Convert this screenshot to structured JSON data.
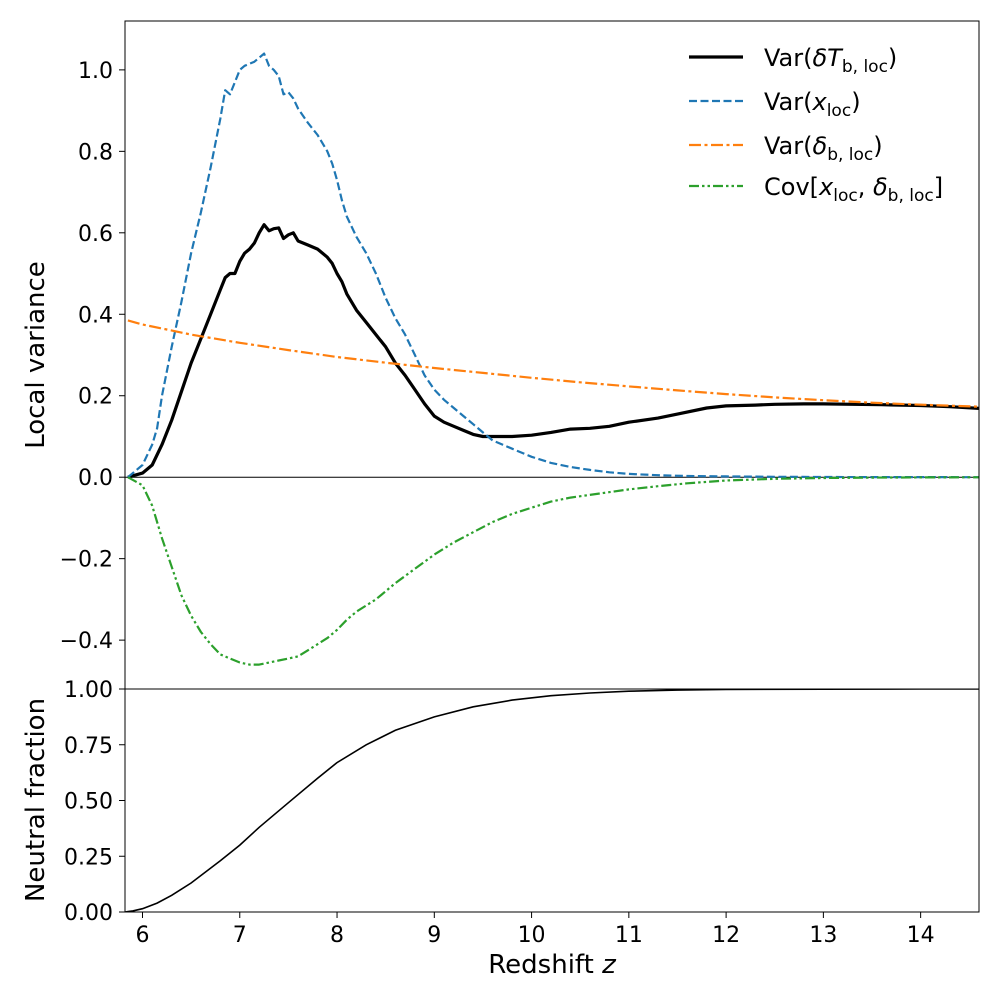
{
  "chart_data": [
    {
      "type": "line",
      "panel": "top",
      "xlabel": "",
      "ylabel": "Local variance",
      "xlim": [
        5.82,
        14.6
      ],
      "ylim": [
        -0.52,
        1.12
      ],
      "yticks": [
        -0.4,
        -0.2,
        0.0,
        0.2,
        0.4,
        0.6,
        0.8,
        1.0
      ],
      "ytick_labels": [
        "−0.4",
        "−0.2",
        "0.0",
        "0.2",
        "0.4",
        "0.6",
        "0.8",
        "1.0"
      ],
      "hline_y": 0.0,
      "legend_position": "top-right",
      "series": [
        {
          "name": "Var(δT_b,loc)",
          "label_main": "Var(",
          "label_sym": "δT",
          "label_sub": "b, loc",
          "label_end": ")",
          "color": "#000000",
          "style": "solid",
          "x": [
            5.85,
            6.0,
            6.1,
            6.2,
            6.3,
            6.4,
            6.5,
            6.6,
            6.7,
            6.8,
            6.85,
            6.9,
            6.95,
            7.0,
            7.05,
            7.1,
            7.15,
            7.2,
            7.25,
            7.3,
            7.35,
            7.4,
            7.45,
            7.5,
            7.55,
            7.6,
            7.7,
            7.8,
            7.9,
            7.95,
            8.0,
            8.05,
            8.1,
            8.2,
            8.3,
            8.4,
            8.5,
            8.6,
            8.7,
            8.8,
            8.9,
            9.0,
            9.1,
            9.2,
            9.3,
            9.4,
            9.5,
            9.6,
            9.7,
            9.8,
            10.0,
            10.2,
            10.4,
            10.6,
            10.8,
            11.0,
            11.3,
            11.5,
            11.8,
            12.0,
            12.3,
            12.5,
            12.8,
            13.0,
            13.3,
            13.6,
            14.0,
            14.3,
            14.6
          ],
          "values": [
            0.0,
            0.01,
            0.03,
            0.08,
            0.14,
            0.21,
            0.28,
            0.34,
            0.4,
            0.46,
            0.49,
            0.5,
            0.5,
            0.53,
            0.55,
            0.56,
            0.575,
            0.6,
            0.62,
            0.605,
            0.61,
            0.612,
            0.586,
            0.595,
            0.6,
            0.58,
            0.57,
            0.56,
            0.54,
            0.525,
            0.5,
            0.48,
            0.45,
            0.41,
            0.38,
            0.35,
            0.32,
            0.28,
            0.25,
            0.215,
            0.18,
            0.15,
            0.135,
            0.125,
            0.115,
            0.105,
            0.1,
            0.1,
            0.1,
            0.1,
            0.103,
            0.11,
            0.118,
            0.12,
            0.125,
            0.135,
            0.145,
            0.155,
            0.17,
            0.175,
            0.177,
            0.179,
            0.18,
            0.18,
            0.179,
            0.178,
            0.176,
            0.173,
            0.169
          ]
        },
        {
          "name": "Var(x_loc)",
          "label_main": "Var(",
          "label_sym": "x",
          "label_sub": "loc",
          "label_end": ")",
          "color": "#1f77b4",
          "style": "dashed",
          "x": [
            5.85,
            6.0,
            6.1,
            6.15,
            6.2,
            6.3,
            6.4,
            6.5,
            6.6,
            6.7,
            6.8,
            6.85,
            6.9,
            6.95,
            7.0,
            7.05,
            7.1,
            7.15,
            7.2,
            7.25,
            7.3,
            7.35,
            7.4,
            7.45,
            7.5,
            7.55,
            7.6,
            7.7,
            7.8,
            7.9,
            7.95,
            8.0,
            8.05,
            8.1,
            8.2,
            8.3,
            8.4,
            8.5,
            8.6,
            8.7,
            8.8,
            8.9,
            9.0,
            9.1,
            9.2,
            9.3,
            9.4,
            9.5,
            9.6,
            9.8,
            10.0,
            10.2,
            10.4,
            10.6,
            10.8,
            11.0,
            11.3,
            11.6,
            12.0,
            12.5,
            13.0,
            13.5,
            14.0,
            14.6
          ],
          "values": [
            0.0,
            0.03,
            0.08,
            0.12,
            0.2,
            0.32,
            0.43,
            0.55,
            0.65,
            0.76,
            0.88,
            0.95,
            0.94,
            0.97,
            1.0,
            1.01,
            1.015,
            1.02,
            1.03,
            1.04,
            1.01,
            1.0,
            0.985,
            0.94,
            0.945,
            0.93,
            0.905,
            0.87,
            0.84,
            0.8,
            0.77,
            0.73,
            0.68,
            0.64,
            0.59,
            0.55,
            0.5,
            0.44,
            0.39,
            0.35,
            0.3,
            0.25,
            0.215,
            0.19,
            0.17,
            0.15,
            0.13,
            0.11,
            0.09,
            0.07,
            0.05,
            0.035,
            0.025,
            0.018,
            0.012,
            0.008,
            0.005,
            0.003,
            0.002,
            0.001,
            0.0005,
            0.0003,
            0.0002,
            0.0001
          ]
        },
        {
          "name": "Var(δ_b,loc)",
          "label_main": "Var(",
          "label_sym": "δ",
          "label_sub": "b, loc",
          "label_end": ")",
          "color": "#ff7f0e",
          "style": "dashdot",
          "x": [
            5.85,
            6.0,
            6.2,
            6.5,
            7.0,
            7.5,
            8.0,
            8.5,
            9.0,
            9.5,
            10.0,
            10.5,
            11.0,
            11.5,
            12.0,
            12.5,
            13.0,
            13.5,
            14.0,
            14.6
          ],
          "values": [
            0.385,
            0.375,
            0.365,
            0.35,
            0.33,
            0.312,
            0.295,
            0.281,
            0.268,
            0.256,
            0.244,
            0.233,
            0.223,
            0.213,
            0.204,
            0.196,
            0.189,
            0.183,
            0.178,
            0.173
          ]
        },
        {
          "name": "Cov[x_loc, δ_b,loc]",
          "label_main": "Cov[",
          "label_sym": "x",
          "label_sub": "loc",
          "label_mid": ", ",
          "label_sym2": "δ",
          "label_sub2": "b, loc",
          "label_end": "]",
          "color": "#2ca02c",
          "style": "dashdotdot",
          "x": [
            5.85,
            6.0,
            6.1,
            6.2,
            6.3,
            6.4,
            6.5,
            6.6,
            6.7,
            6.8,
            6.9,
            7.0,
            7.1,
            7.2,
            7.3,
            7.4,
            7.5,
            7.6,
            7.7,
            7.8,
            7.9,
            8.0,
            8.1,
            8.2,
            8.3,
            8.4,
            8.5,
            8.6,
            8.8,
            9.0,
            9.2,
            9.4,
            9.6,
            9.8,
            10.0,
            10.2,
            10.4,
            10.7,
            11.0,
            11.3,
            11.6,
            12.0,
            12.5,
            13.0,
            13.5,
            14.0,
            14.6
          ],
          "values": [
            0.0,
            -0.02,
            -0.07,
            -0.15,
            -0.22,
            -0.29,
            -0.34,
            -0.38,
            -0.41,
            -0.435,
            -0.445,
            -0.455,
            -0.46,
            -0.46,
            -0.455,
            -0.45,
            -0.445,
            -0.44,
            -0.425,
            -0.41,
            -0.395,
            -0.375,
            -0.35,
            -0.33,
            -0.315,
            -0.3,
            -0.28,
            -0.26,
            -0.225,
            -0.19,
            -0.16,
            -0.135,
            -0.11,
            -0.09,
            -0.075,
            -0.06,
            -0.05,
            -0.04,
            -0.03,
            -0.022,
            -0.015,
            -0.008,
            -0.004,
            -0.002,
            -0.001,
            -0.0005,
            -0.0002
          ]
        }
      ]
    },
    {
      "type": "line",
      "panel": "bottom",
      "xlabel": "Redshift",
      "xlabel_var": "z",
      "ylabel": "Neutral fraction",
      "xlim": [
        5.82,
        14.6
      ],
      "ylim": [
        0.0,
        1.0
      ],
      "xticks": [
        6,
        7,
        8,
        9,
        10,
        11,
        12,
        13,
        14
      ],
      "xtick_labels": [
        "6",
        "7",
        "8",
        "9",
        "10",
        "11",
        "12",
        "13",
        "14"
      ],
      "yticks": [
        0.0,
        0.25,
        0.5,
        0.75,
        1.0
      ],
      "ytick_labels": [
        "0.00",
        "0.25",
        "0.50",
        "0.75",
        "1.00"
      ],
      "series": [
        {
          "name": "Neutral fraction",
          "color": "#000000",
          "style": "solid",
          "x": [
            5.82,
            5.9,
            6.0,
            6.15,
            6.3,
            6.5,
            6.8,
            7.0,
            7.2,
            7.5,
            7.8,
            8.0,
            8.3,
            8.6,
            9.0,
            9.4,
            9.8,
            10.2,
            10.6,
            11.0,
            11.5,
            12.0,
            13.0,
            14.0,
            14.6
          ],
          "values": [
            0.0,
            0.005,
            0.015,
            0.04,
            0.075,
            0.13,
            0.23,
            0.3,
            0.38,
            0.49,
            0.6,
            0.67,
            0.75,
            0.815,
            0.875,
            0.92,
            0.95,
            0.97,
            0.982,
            0.99,
            0.995,
            0.998,
            0.999,
            1.0,
            1.0
          ]
        }
      ]
    }
  ]
}
